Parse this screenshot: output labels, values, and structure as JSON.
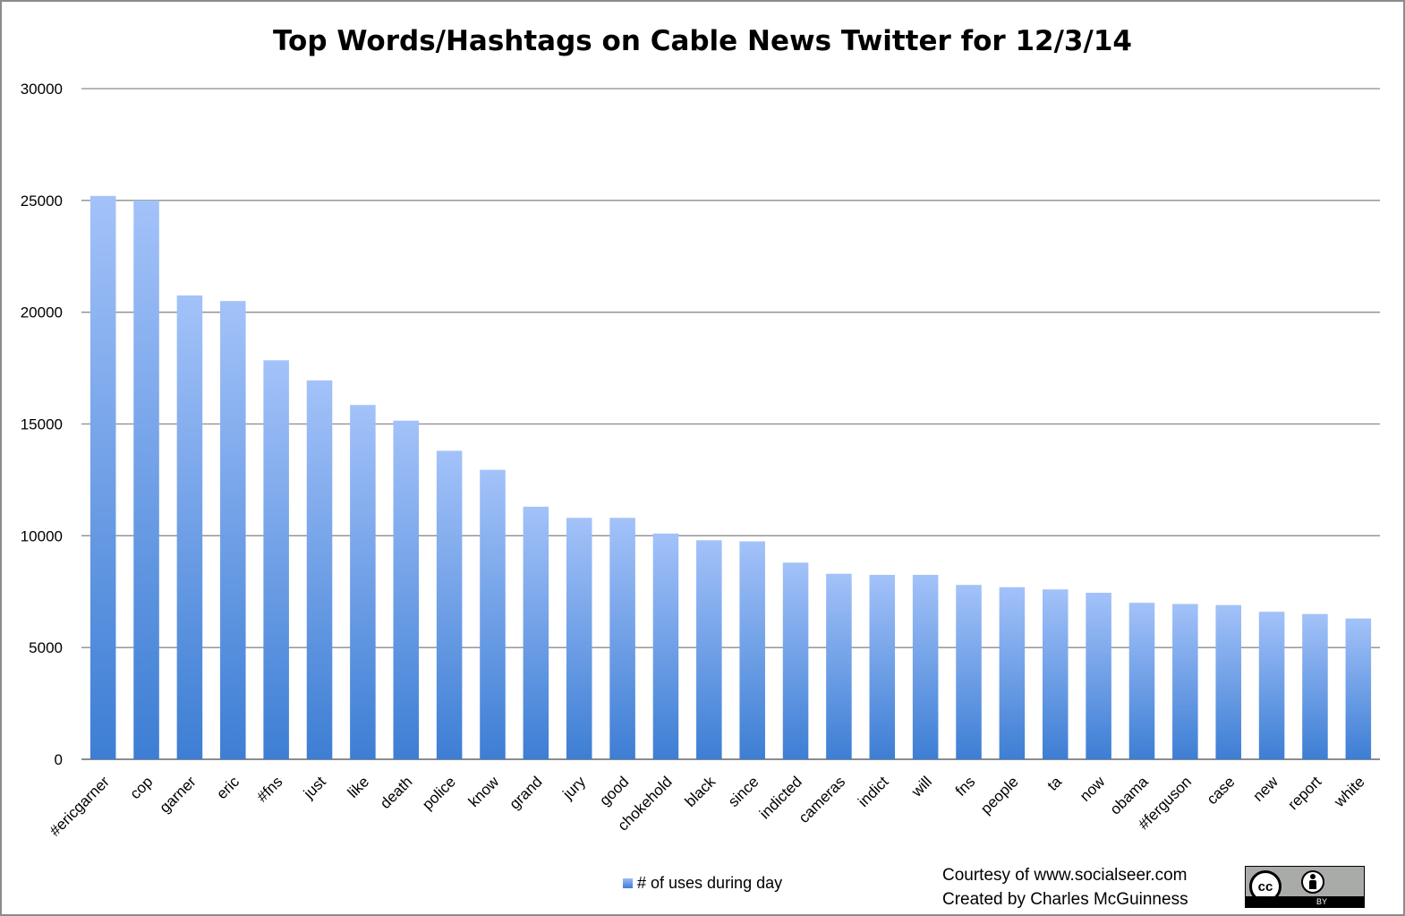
{
  "chart_data": {
    "type": "bar",
    "title": "Top Words/Hashtags on Cable News Twitter for 12/3/14",
    "xlabel": "",
    "ylabel": "",
    "ylim": [
      0,
      30000
    ],
    "yticks": [
      "0",
      "5000",
      "10000",
      "15000",
      "20000",
      "25000",
      "30000"
    ],
    "grid": true,
    "legend_position": "bottom",
    "categories": [
      "#ericgarner",
      "cop",
      "garner",
      "eric",
      "#fns",
      "just",
      "like",
      "death",
      "police",
      "know",
      "grand",
      "jury",
      "good",
      "chokehold",
      "black",
      "since",
      "indicted",
      "cameras",
      "indict",
      "will",
      "fns",
      "people",
      "ta",
      "now",
      "obama",
      "#ferguson",
      "case",
      "new",
      "report",
      "white"
    ],
    "series": [
      {
        "name": "# of uses during day",
        "values": [
          25200,
          25000,
          20750,
          20500,
          17850,
          16950,
          15850,
          15150,
          13800,
          12950,
          11300,
          10800,
          10800,
          10100,
          9800,
          9750,
          8800,
          8300,
          8250,
          8250,
          7800,
          7700,
          7600,
          7450,
          7000,
          6950,
          6900,
          6600,
          6500,
          6300
        ]
      }
    ],
    "colors": {
      "bar_top": "#a3c2f9",
      "bar_bottom": "#3d7ed4",
      "grid": "#8c8c8c"
    }
  },
  "credit": {
    "line1": "Courtesy of www.socialseer.com",
    "line2": "Created by Charles McGuinness"
  },
  "license_badge": {
    "cc_text": "cc",
    "by_text": "BY",
    "icons": [
      "creative-commons-icon",
      "attribution-person-icon"
    ]
  }
}
